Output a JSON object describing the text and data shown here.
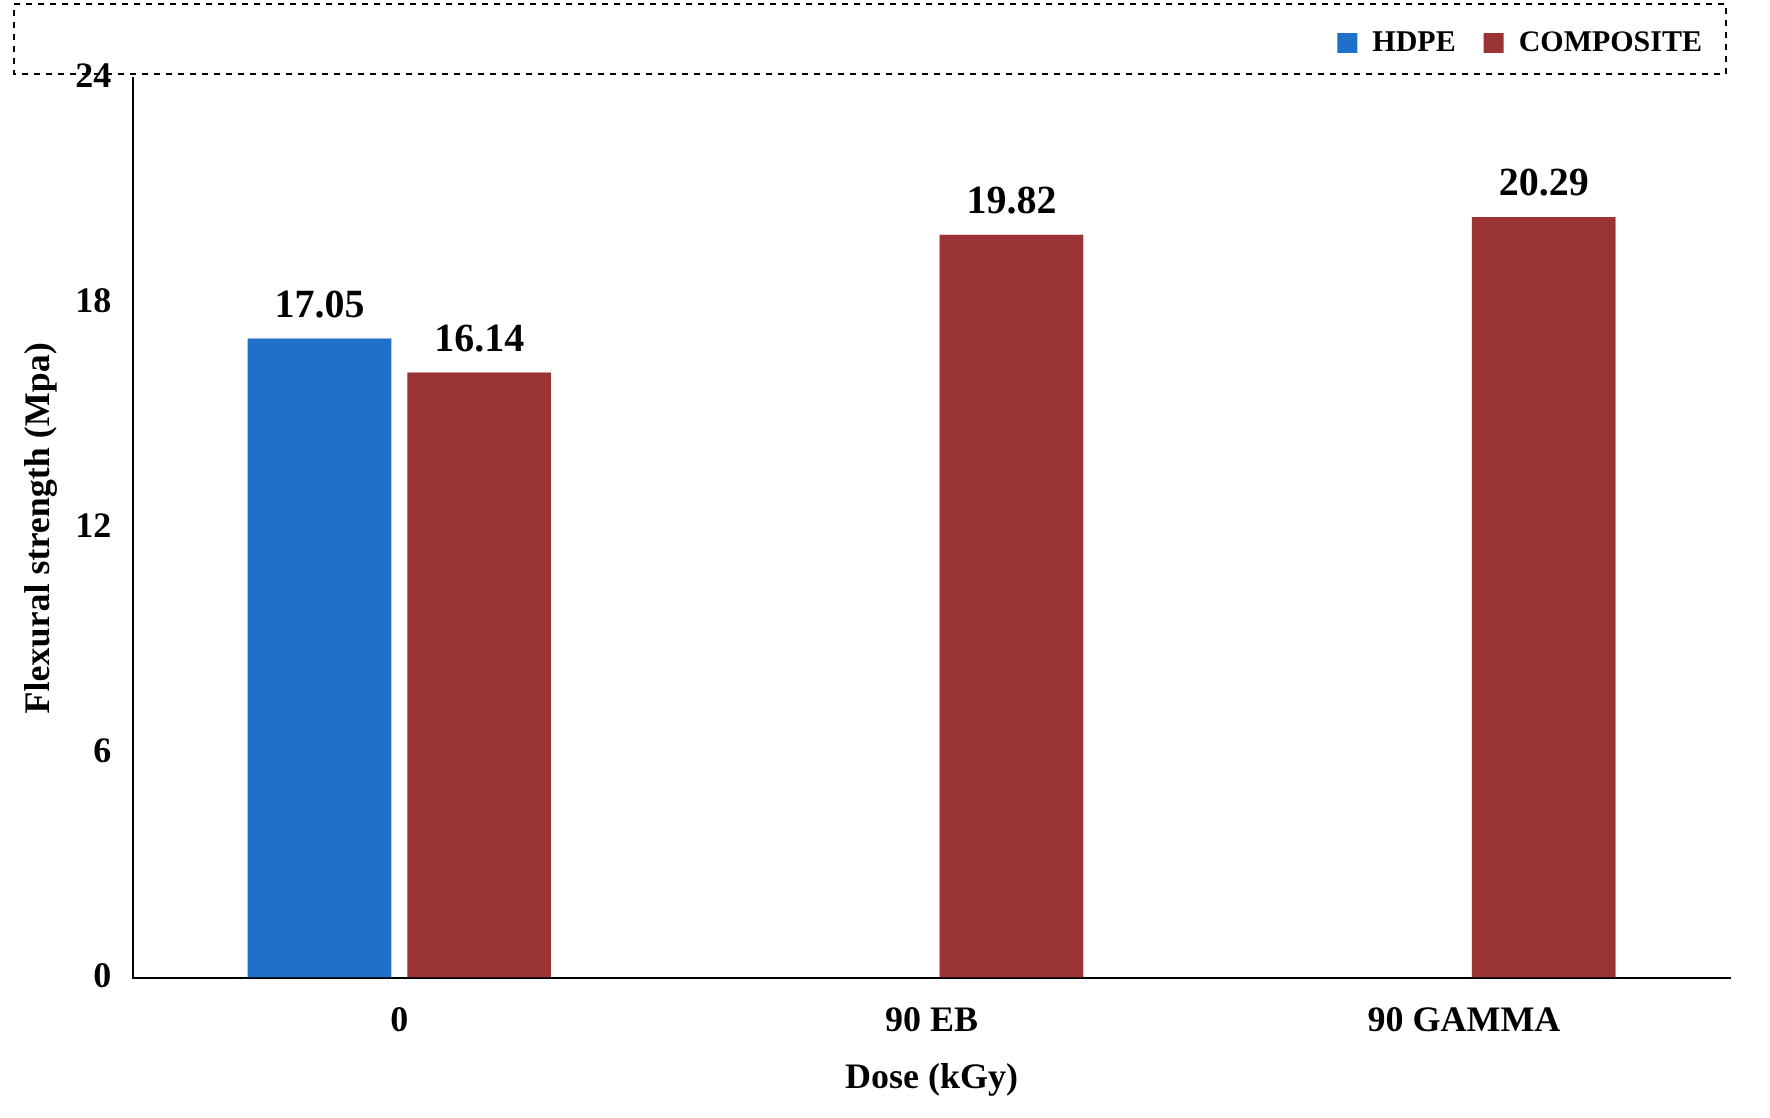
{
  "chart_data": {
    "type": "bar",
    "xlabel": "Dose (kGy)",
    "ylabel": "Flexural strength (Mpa)",
    "categories": [
      "0",
      "90 EB",
      "90 GAMMA"
    ],
    "series": [
      {
        "name": "HDPE",
        "color": "#1f70c8",
        "values": [
          17.05,
          null,
          null
        ]
      },
      {
        "name": "COMPOSITE",
        "color": "#9a3434",
        "values": [
          16.14,
          19.82,
          20.29
        ]
      }
    ],
    "ylim": [
      0,
      24
    ],
    "yticks": [
      0,
      6,
      12,
      18,
      24
    ],
    "grid": false,
    "legend": "top right",
    "data_labels": true
  }
}
